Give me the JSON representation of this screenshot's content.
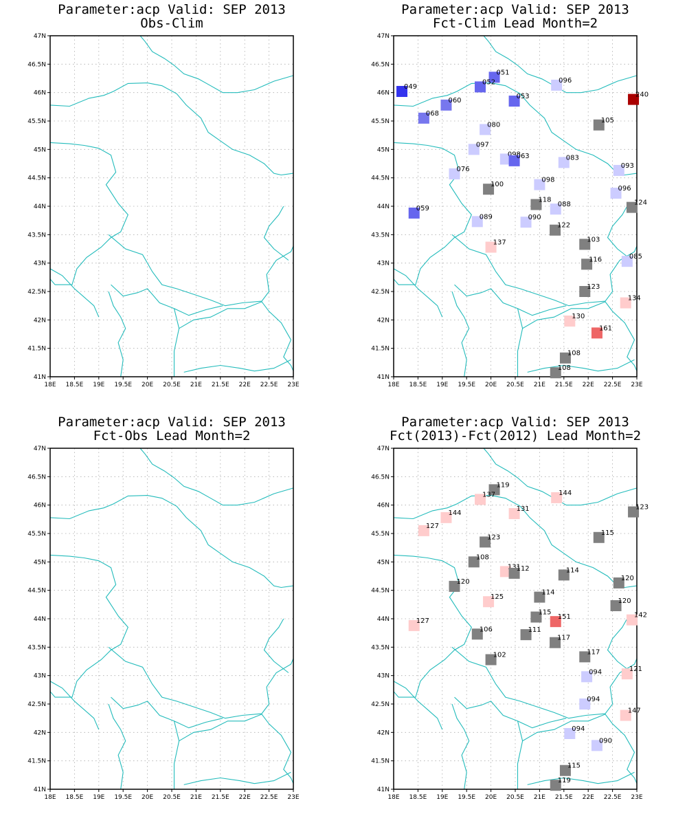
{
  "lat_ticks": [
    "41N",
    "41.5N",
    "42N",
    "42.5N",
    "43N",
    "43.5N",
    "44N",
    "44.5N",
    "45N",
    "45.5N",
    "46N",
    "46.5N",
    "47N"
  ],
  "lon_ticks": [
    "18E",
    "18.5E",
    "19E",
    "19.5E",
    "20E",
    "20.5E",
    "21E",
    "21.5E",
    "22E",
    "22.5E",
    "23E"
  ],
  "extent": {
    "lon_min": 18,
    "lon_max": 23,
    "lat_min": 41,
    "lat_max": 47
  },
  "colors": {
    "border": "#22bbbb",
    "grid": "#aaaaaa",
    "neutral": "#808080"
  },
  "panels": [
    {
      "line1": "Parameter:acp Valid: SEP 2013",
      "line2": "Obs-Clim",
      "stations": []
    },
    {
      "line1": "Parameter:acp Valid: SEP 2013",
      "line2": "Fct-Clim Lead Month=2",
      "stations": [
        {
          "label": "049",
          "lon": 18.17,
          "lat": 46.02,
          "color": "#3333ee"
        },
        {
          "label": "051",
          "lon": 20.07,
          "lat": 46.27,
          "color": "#6666ee"
        },
        {
          "label": "052",
          "lon": 19.78,
          "lat": 46.1,
          "color": "#6666ee"
        },
        {
          "label": "053",
          "lon": 20.48,
          "lat": 45.85,
          "color": "#6666ee"
        },
        {
          "label": "096",
          "lon": 21.35,
          "lat": 46.13,
          "color": "#ccccff"
        },
        {
          "label": "240",
          "lon": 22.93,
          "lat": 45.88,
          "color": "#aa0000"
        },
        {
          "label": "060",
          "lon": 19.08,
          "lat": 45.78,
          "color": "#7777ee"
        },
        {
          "label": "068",
          "lon": 18.62,
          "lat": 45.55,
          "color": "#7777ee"
        },
        {
          "label": "080",
          "lon": 19.88,
          "lat": 45.35,
          "color": "#ccccff"
        },
        {
          "label": "105",
          "lon": 22.22,
          "lat": 45.43,
          "color": "#808080"
        },
        {
          "label": "097",
          "lon": 19.65,
          "lat": 45.0,
          "color": "#ccccff"
        },
        {
          "label": "098",
          "lon": 20.3,
          "lat": 44.83,
          "color": "#ccccff"
        },
        {
          "label": "063",
          "lon": 20.48,
          "lat": 44.8,
          "color": "#6666ee"
        },
        {
          "label": "083",
          "lon": 21.5,
          "lat": 44.77,
          "color": "#ccccff"
        },
        {
          "label": "093",
          "lon": 22.63,
          "lat": 44.63,
          "color": "#ccccff"
        },
        {
          "label": "076",
          "lon": 19.25,
          "lat": 44.57,
          "color": "#ccccff"
        },
        {
          "label": "100",
          "lon": 19.95,
          "lat": 44.3,
          "color": "#808080"
        },
        {
          "label": "098",
          "lon": 21.0,
          "lat": 44.38,
          "color": "#ccccff"
        },
        {
          "label": "096",
          "lon": 22.57,
          "lat": 44.23,
          "color": "#ccccff"
        },
        {
          "label": "118",
          "lon": 20.93,
          "lat": 44.03,
          "color": "#808080"
        },
        {
          "label": "088",
          "lon": 21.33,
          "lat": 43.95,
          "color": "#ccccff"
        },
        {
          "label": "124",
          "lon": 22.9,
          "lat": 43.98,
          "color": "#808080"
        },
        {
          "label": "059",
          "lon": 18.42,
          "lat": 43.88,
          "color": "#6666ee"
        },
        {
          "label": "089",
          "lon": 19.72,
          "lat": 43.73,
          "color": "#ccccff"
        },
        {
          "label": "090",
          "lon": 20.72,
          "lat": 43.72,
          "color": "#ccccff"
        },
        {
          "label": "122",
          "lon": 21.32,
          "lat": 43.58,
          "color": "#808080"
        },
        {
          "label": "103",
          "lon": 21.93,
          "lat": 43.33,
          "color": "#808080"
        },
        {
          "label": "137",
          "lon": 20.0,
          "lat": 43.28,
          "color": "#ffcccc"
        },
        {
          "label": "116",
          "lon": 21.97,
          "lat": 42.98,
          "color": "#808080"
        },
        {
          "label": "085",
          "lon": 22.8,
          "lat": 43.03,
          "color": "#ccccff"
        },
        {
          "label": "123",
          "lon": 21.93,
          "lat": 42.5,
          "color": "#808080"
        },
        {
          "label": "134",
          "lon": 22.77,
          "lat": 42.3,
          "color": "#ffcccc"
        },
        {
          "label": "130",
          "lon": 21.62,
          "lat": 41.98,
          "color": "#ffcccc"
        },
        {
          "label": "161",
          "lon": 22.18,
          "lat": 41.77,
          "color": "#ee6666"
        },
        {
          "label": "108",
          "lon": 21.53,
          "lat": 41.33,
          "color": "#808080"
        },
        {
          "label": "108",
          "lon": 21.33,
          "lat": 41.07,
          "color": "#808080"
        }
      ]
    },
    {
      "line1": "Parameter:acp Valid: SEP 2013",
      "line2": "Fct-Obs Lead Month=2",
      "stations": []
    },
    {
      "line1": "Parameter:acp Valid: SEP 2013",
      "line2": "Fct(2013)-Fct(2012) Lead Month=2",
      "stations": [
        {
          "label": "119",
          "lon": 20.07,
          "lat": 46.27,
          "color": "#808080"
        },
        {
          "label": "137",
          "lon": 19.78,
          "lat": 46.1,
          "color": "#ffcccc"
        },
        {
          "label": "144",
          "lon": 21.35,
          "lat": 46.13,
          "color": "#ffcccc"
        },
        {
          "label": "123",
          "lon": 22.93,
          "lat": 45.88,
          "color": "#808080"
        },
        {
          "label": "131",
          "lon": 20.48,
          "lat": 45.85,
          "color": "#ffcccc"
        },
        {
          "label": "144",
          "lon": 19.08,
          "lat": 45.78,
          "color": "#ffcccc"
        },
        {
          "label": "127",
          "lon": 18.62,
          "lat": 45.55,
          "color": "#ffcccc"
        },
        {
          "label": "123",
          "lon": 19.88,
          "lat": 45.35,
          "color": "#808080"
        },
        {
          "label": "115",
          "lon": 22.22,
          "lat": 45.43,
          "color": "#808080"
        },
        {
          "label": "108",
          "lon": 19.65,
          "lat": 45.0,
          "color": "#808080"
        },
        {
          "label": "131",
          "lon": 20.3,
          "lat": 44.83,
          "color": "#ffcccc"
        },
        {
          "label": "112",
          "lon": 20.48,
          "lat": 44.8,
          "color": "#808080"
        },
        {
          "label": "114",
          "lon": 21.5,
          "lat": 44.77,
          "color": "#808080"
        },
        {
          "label": "120",
          "lon": 22.63,
          "lat": 44.63,
          "color": "#808080"
        },
        {
          "label": "120",
          "lon": 19.25,
          "lat": 44.57,
          "color": "#808080"
        },
        {
          "label": "114",
          "lon": 21.0,
          "lat": 44.38,
          "color": "#808080"
        },
        {
          "label": "125",
          "lon": 19.95,
          "lat": 44.3,
          "color": "#ffcccc"
        },
        {
          "label": "120",
          "lon": 22.57,
          "lat": 44.23,
          "color": "#808080"
        },
        {
          "label": "115",
          "lon": 20.93,
          "lat": 44.03,
          "color": "#808080"
        },
        {
          "label": "151",
          "lon": 21.33,
          "lat": 43.95,
          "color": "#ee6666"
        },
        {
          "label": "142",
          "lon": 22.9,
          "lat": 43.98,
          "color": "#ffcccc"
        },
        {
          "label": "127",
          "lon": 18.42,
          "lat": 43.88,
          "color": "#ffcccc"
        },
        {
          "label": "106",
          "lon": 19.72,
          "lat": 43.73,
          "color": "#808080"
        },
        {
          "label": "111",
          "lon": 20.72,
          "lat": 43.72,
          "color": "#808080"
        },
        {
          "label": "117",
          "lon": 21.32,
          "lat": 43.58,
          "color": "#808080"
        },
        {
          "label": "117",
          "lon": 21.93,
          "lat": 43.33,
          "color": "#808080"
        },
        {
          "label": "102",
          "lon": 20.0,
          "lat": 43.28,
          "color": "#808080"
        },
        {
          "label": "094",
          "lon": 21.97,
          "lat": 42.98,
          "color": "#ccccff"
        },
        {
          "label": "121",
          "lon": 22.8,
          "lat": 43.03,
          "color": "#ffcccc"
        },
        {
          "label": "094",
          "lon": 21.93,
          "lat": 42.5,
          "color": "#ccccff"
        },
        {
          "label": "147",
          "lon": 22.77,
          "lat": 42.3,
          "color": "#ffcccc"
        },
        {
          "label": "094",
          "lon": 21.62,
          "lat": 41.98,
          "color": "#ccccff"
        },
        {
          "label": "090",
          "lon": 22.18,
          "lat": 41.77,
          "color": "#ccccff"
        },
        {
          "label": "115",
          "lon": 21.53,
          "lat": 41.33,
          "color": "#808080"
        },
        {
          "label": "119",
          "lon": 21.33,
          "lat": 41.07,
          "color": "#808080"
        }
      ]
    }
  ]
}
